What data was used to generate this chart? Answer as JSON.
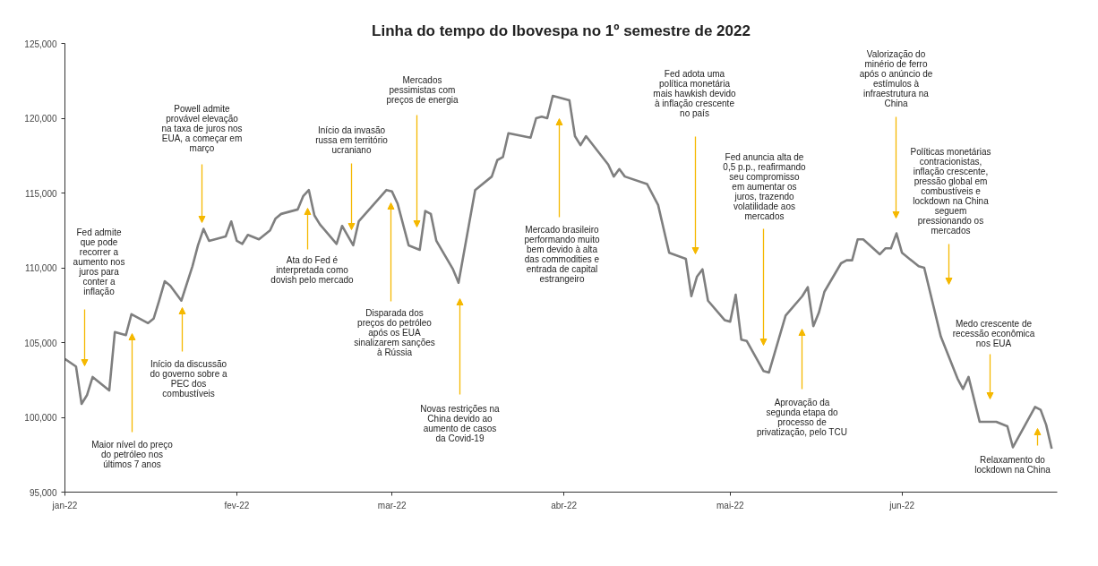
{
  "chart_data": {
    "type": "line",
    "title": "Linha do tempo do Ibovespa no 1º semestre de 2022",
    "x": [
      "2022-01-01",
      "2022-01-03",
      "2022-01-04",
      "2022-01-05",
      "2022-01-06",
      "2022-01-09",
      "2022-01-10",
      "2022-01-12",
      "2022-01-13",
      "2022-01-16",
      "2022-01-17",
      "2022-01-18",
      "2022-01-19",
      "2022-01-20",
      "2022-01-22",
      "2022-01-24",
      "2022-01-25",
      "2022-01-26",
      "2022-01-27",
      "2022-01-30",
      "2022-01-31",
      "2022-02-01",
      "2022-02-02",
      "2022-02-03",
      "2022-02-05",
      "2022-02-07",
      "2022-02-08",
      "2022-02-09",
      "2022-02-12",
      "2022-02-13",
      "2022-02-14",
      "2022-02-15",
      "2022-02-16",
      "2022-02-19",
      "2022-02-20",
      "2022-02-22",
      "2022-02-23",
      "2022-02-28",
      "2022-03-01",
      "2022-03-02",
      "2022-03-04",
      "2022-03-06",
      "2022-03-07",
      "2022-03-08",
      "2022-03-09",
      "2022-03-12",
      "2022-03-13",
      "2022-03-16",
      "2022-03-19",
      "2022-03-20",
      "2022-03-21",
      "2022-03-22",
      "2022-03-26",
      "2022-03-27",
      "2022-03-28",
      "2022-03-29",
      "2022-03-30",
      "2022-04-02",
      "2022-04-03",
      "2022-04-04",
      "2022-04-05",
      "2022-04-09",
      "2022-04-10",
      "2022-04-11",
      "2022-04-12",
      "2022-04-16",
      "2022-04-18",
      "2022-04-20",
      "2022-04-23",
      "2022-04-24",
      "2022-04-25",
      "2022-04-26",
      "2022-04-27",
      "2022-04-30",
      "2022-05-01",
      "2022-05-02",
      "2022-05-03",
      "2022-05-04",
      "2022-05-07",
      "2022-05-08",
      "2022-05-11",
      "2022-05-14",
      "2022-05-15",
      "2022-05-16",
      "2022-05-17",
      "2022-05-18",
      "2022-05-21",
      "2022-05-22",
      "2022-05-23",
      "2022-05-24",
      "2022-05-25",
      "2022-05-28",
      "2022-05-29",
      "2022-05-30",
      "2022-05-31",
      "2022-06-01",
      "2022-06-04",
      "2022-06-05",
      "2022-06-08",
      "2022-06-11",
      "2022-06-12",
      "2022-06-13",
      "2022-06-15",
      "2022-06-18",
      "2022-06-20",
      "2022-06-21",
      "2022-06-25",
      "2022-06-26",
      "2022-06-27",
      "2022-06-28"
    ],
    "series": [
      {
        "color": "#7f7f7f",
        "values": [
          103900,
          103400,
          100900,
          101500,
          102700,
          101800,
          105700,
          105500,
          106900,
          106300,
          106600,
          107800,
          109100,
          108800,
          107800,
          110100,
          111500,
          112600,
          111800,
          112100,
          113100,
          111800,
          111600,
          112200,
          111900,
          112500,
          113300,
          113600,
          113900,
          114800,
          115200,
          113500,
          112900,
          111600,
          112800,
          111500,
          113100,
          115200,
          115100,
          114300,
          111500,
          111200,
          113800,
          113600,
          111800,
          109900,
          109000,
          115200,
          116100,
          117200,
          117400,
          119000,
          118700,
          120000,
          120100,
          120000,
          121500,
          121200,
          118800,
          118200,
          118800,
          116900,
          116100,
          116600,
          116100,
          115600,
          114200,
          111000,
          110600,
          108100,
          109400,
          109900,
          107800,
          106500,
          106400,
          108200,
          105200,
          105100,
          103100,
          103000,
          106800,
          108100,
          108700,
          106100,
          107000,
          108400,
          110300,
          110500,
          110500,
          111900,
          111900,
          110900,
          111300,
          111300,
          112300,
          111000,
          110100,
          110000,
          105400,
          102600,
          101900,
          102700,
          99700,
          99700,
          99400,
          98000,
          100700,
          100500,
          99500,
          97900
        ]
      }
    ],
    "xlim": [
      "2022-01-01",
      "2022-06-29"
    ],
    "xticks": [
      {
        "value": "2022-01-01",
        "label": "jan-22"
      },
      {
        "value": "2022-02-01",
        "label": "fev-22"
      },
      {
        "value": "2022-03-01",
        "label": "mar-22"
      },
      {
        "value": "2022-04-01",
        "label": "abr-22"
      },
      {
        "value": "2022-05-01",
        "label": "mai-22"
      },
      {
        "value": "2022-06-01",
        "label": "jun-22"
      }
    ],
    "ylim": [
      95000,
      125000
    ],
    "yticks": [
      {
        "value": 95000,
        "label": "95,000"
      },
      {
        "value": 100000,
        "label": "100,000"
      },
      {
        "value": 105000,
        "label": "105,000"
      },
      {
        "value": 110000,
        "label": "110,000"
      },
      {
        "value": 115000,
        "label": "115,000"
      },
      {
        "value": 120000,
        "label": "120,000"
      },
      {
        "value": 125000,
        "label": "125,000"
      }
    ],
    "grid": false,
    "line_style": "solid",
    "marker": "none",
    "annotations": [
      "Fed admite\nque pode\nrecorrer a\naumento nos\njuros para\nconter a\ninflação",
      "Maior nível do preço\ndo petróleo nos\núltimos 7 anos",
      "Início da discussão\ndo governo sobre a\nPEC dos\ncombustíveis",
      "Powell admite\nprovável elevação\nna taxa de juros nos\nEUA, a começar em\nmarço",
      "Início da invasão\nrussa em território\nucraniano",
      "Ata do Fed é\ninterpretada como\ndovish pelo mercado",
      "Disparada dos\npreços do petróleo\napós os EUA\nsinalizarem sanções\nà Rússia",
      "Mercados\npessimistas com\npreços de energia",
      "Novas restrições na\nChina devido ao\naumento de casos\nda Covid-19",
      "Mercado brasileiro\nperformando muito\nbem devido à alta\ndas commodities e\nentrada de capital\nestrangeiro",
      "Fed adota uma\npolítica monetária\nmais hawkish devido\nà inflação crescente\nno país",
      "Fed anuncia alta de\n0,5 p.p., reafirmando\nseu compromisso\nem aumentar os\njuros, trazendo\nvolatilidade aos\nmercados",
      "Aprovação da\nsegunda etapa do\nprocesso de\nprivatização, pelo TCU",
      "Valorização do\nminério de ferro\napós o anúncio de\nestímulos à\ninfraestrutura na\nChina",
      "Políticas monetárias\ncontracionistas,\ninflação crescente,\npressão global em\ncombustíveis e\nlockdown na China\nseguem\npressionando os\nmercados",
      "Medo crescente de\nrecessão econômica\nnos EUA",
      "Relaxamento do\nlockdown na China"
    ]
  }
}
